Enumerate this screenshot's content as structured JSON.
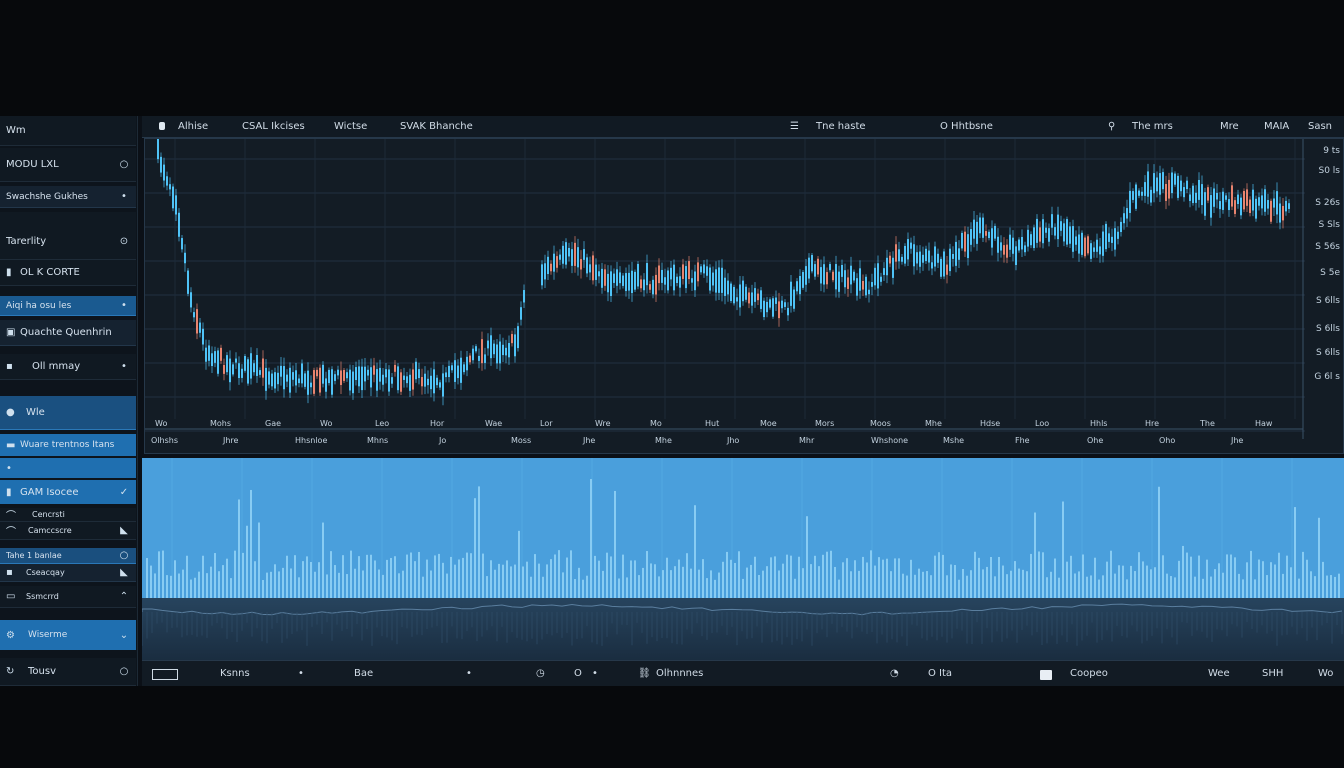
{
  "sidebar": {
    "title": "Wm",
    "items": [
      {
        "label": "MODU LXL",
        "icon": "circle-outline-icon"
      },
      {
        "label": "Swachshe Gukhes",
        "icon": "dot-icon"
      },
      {
        "label": "Tarerlity",
        "icon": "circle-outline-icon"
      },
      {
        "label": "OL K CORTE",
        "icon": "bookmark-icon"
      },
      {
        "label": "Aiqi ha osu les",
        "icon": "dot-icon"
      },
      {
        "label": "Quachte Quenhrin",
        "icon": "square-icon"
      },
      {
        "label": "Oll mmay",
        "icon": "dot-icon"
      },
      {
        "label": "Wle",
        "icon": "circle-icon"
      },
      {
        "label": "Wuare trentnos Itans",
        "icon": "square-icon"
      },
      {
        "label": "",
        "icon": "dot-icon"
      },
      {
        "label": "GAM Isocee",
        "icon": "checkmark-icon"
      },
      {
        "label": "Cencrsti",
        "icon": "dot-icon"
      },
      {
        "label": "Camccscre",
        "icon": "triangle-icon"
      },
      {
        "label": "Tahe 1 banlae",
        "icon": "circle-outline-icon"
      },
      {
        "label": "Cseacqay",
        "icon": "triangle-icon"
      },
      {
        "label": "Ssmcrrd",
        "icon": "triangle-icon"
      },
      {
        "label": "Wiserme",
        "icon": "chevron-icon"
      },
      {
        "label": "Tousv",
        "icon": "circle-outline-icon"
      }
    ]
  },
  "toolbar": {
    "items": [
      "Alhise",
      "CSAL Ikcises",
      "Wictse",
      "SVAK Bhanche",
      "Tne haste",
      "O Hhtbsne",
      "The mrs",
      "Mre",
      "MAIA",
      "Sasn"
    ]
  },
  "right_axis": [
    "9 ts",
    "S0 ls",
    "S 26s",
    "S Sls",
    "S 56s",
    "S 5e",
    "S 6lls",
    "S 6lls",
    "S 6lls",
    "G 6l s"
  ],
  "x_axis": [
    "Wo",
    "Mohs",
    "Gae",
    "Wo",
    "Leo",
    "Hor",
    "Wae",
    "Lor",
    "Wre",
    "Mo",
    "Hut",
    "Moe",
    "Mors",
    "Moos",
    "Mhe",
    "Hdse",
    "Loo",
    "Hhls",
    "Hre",
    "The",
    "Haw"
  ],
  "x_axis2": [
    "Olhshs",
    "Jhre",
    "Hhsnloe",
    "Mhns",
    "Jo",
    "Moss",
    "Jhe",
    "Mhe",
    "Jho",
    "Mhr",
    "Whshone",
    "Mshe",
    "Fhe",
    "Ohe",
    "Oho",
    "Jhe"
  ],
  "statusbar": {
    "items": [
      "Ksnns",
      "Bae",
      "O",
      "Olhnnnes",
      "O Ita",
      "Coopeo",
      "Wee",
      "SHH",
      "Wo"
    ]
  },
  "colors": {
    "candle_up": "#4fc3f7",
    "candle_down": "#e8846f",
    "volume_bar": "#8fd0f5",
    "volume_bg": "#4a9fdc"
  }
}
